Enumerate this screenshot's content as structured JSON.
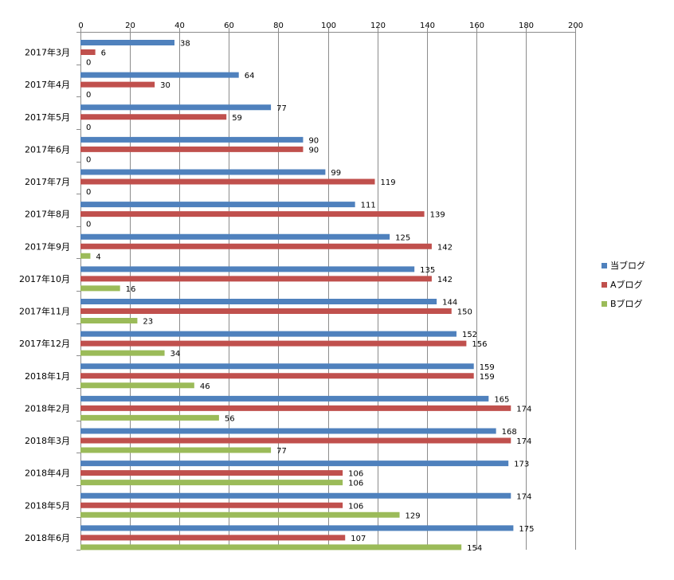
{
  "chart_data": {
    "type": "bar",
    "orientation": "horizontal",
    "title": "",
    "xlabel": "",
    "ylabel": "",
    "xlim": [
      0,
      200
    ],
    "x_ticks": [
      0,
      20,
      40,
      60,
      80,
      100,
      120,
      140,
      160,
      180,
      200
    ],
    "grid": true,
    "legend_position": "right",
    "categories": [
      "2017年3月",
      "2017年4月",
      "2017年5月",
      "2017年6月",
      "2017年7月",
      "2017年8月",
      "2017年9月",
      "2017年10月",
      "2017年11月",
      "2017年12月",
      "2018年1月",
      "2018年2月",
      "2018年3月",
      "2018年4月",
      "2018年5月",
      "2018年6月"
    ],
    "series": [
      {
        "name": "当ブログ",
        "color": "#4f81bd",
        "values": [
          38,
          64,
          77,
          90,
          99,
          111,
          125,
          135,
          144,
          152,
          159,
          165,
          168,
          173,
          174,
          175
        ]
      },
      {
        "name": "Aブログ",
        "color": "#c0504d",
        "values": [
          6,
          30,
          59,
          90,
          119,
          139,
          142,
          142,
          150,
          156,
          159,
          174,
          174,
          106,
          106,
          107
        ]
      },
      {
        "name": "Bブログ",
        "color": "#9bbb59",
        "values": [
          0,
          0,
          0,
          0,
          0,
          0,
          4,
          16,
          23,
          34,
          46,
          56,
          77,
          106,
          129,
          154
        ]
      }
    ]
  }
}
